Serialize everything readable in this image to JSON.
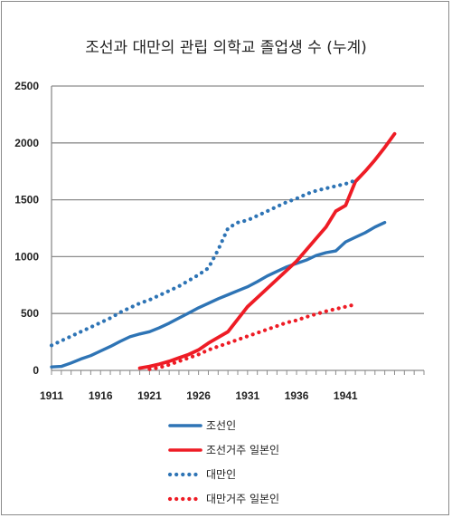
{
  "chart_data": {
    "type": "line",
    "title": "조선과 대만의 관립 의학교 졸업생 수 (누계)",
    "xlim": [
      1911,
      1949
    ],
    "ylim": [
      0,
      2500
    ],
    "x_ticks": [
      1911,
      1916,
      1921,
      1926,
      1931,
      1936,
      1941
    ],
    "y_ticks": [
      0,
      500,
      1000,
      1500,
      2000,
      2500
    ],
    "grid": "horizontal",
    "legend_position": "bottom",
    "series": [
      {
        "name": "조선인",
        "color": "#2e74b5",
        "style": "solid",
        "points": [
          [
            1911,
            30
          ],
          [
            1912,
            35
          ],
          [
            1913,
            65
          ],
          [
            1914,
            100
          ],
          [
            1915,
            130
          ],
          [
            1916,
            170
          ],
          [
            1917,
            210
          ],
          [
            1918,
            255
          ],
          [
            1919,
            295
          ],
          [
            1920,
            320
          ],
          [
            1921,
            340
          ],
          [
            1922,
            375
          ],
          [
            1923,
            415
          ],
          [
            1924,
            460
          ],
          [
            1925,
            505
          ],
          [
            1926,
            550
          ],
          [
            1927,
            590
          ],
          [
            1928,
            630
          ],
          [
            1929,
            665
          ],
          [
            1930,
            700
          ],
          [
            1931,
            735
          ],
          [
            1932,
            780
          ],
          [
            1933,
            830
          ],
          [
            1934,
            870
          ],
          [
            1935,
            910
          ],
          [
            1936,
            940
          ],
          [
            1937,
            970
          ],
          [
            1938,
            1010
          ],
          [
            1939,
            1035
          ],
          [
            1940,
            1050
          ],
          [
            1941,
            1130
          ],
          [
            1942,
            1170
          ],
          [
            1943,
            1210
          ],
          [
            1944,
            1260
          ],
          [
            1945,
            1300
          ]
        ]
      },
      {
        "name": "조선거주 일본인",
        "color": "#ee1c25",
        "style": "solid",
        "points": [
          [
            1920,
            20
          ],
          [
            1921,
            35
          ],
          [
            1922,
            55
          ],
          [
            1923,
            80
          ],
          [
            1924,
            110
          ],
          [
            1925,
            140
          ],
          [
            1926,
            180
          ],
          [
            1927,
            240
          ],
          [
            1928,
            290
          ],
          [
            1929,
            340
          ],
          [
            1930,
            450
          ],
          [
            1931,
            560
          ],
          [
            1932,
            640
          ],
          [
            1933,
            720
          ],
          [
            1934,
            800
          ],
          [
            1935,
            880
          ],
          [
            1936,
            960
          ],
          [
            1937,
            1060
          ],
          [
            1938,
            1160
          ],
          [
            1939,
            1260
          ],
          [
            1940,
            1400
          ],
          [
            1941,
            1450
          ],
          [
            1942,
            1660
          ],
          [
            1943,
            1750
          ],
          [
            1944,
            1850
          ],
          [
            1945,
            1960
          ],
          [
            1946,
            2080
          ]
        ]
      },
      {
        "name": "대만인",
        "color": "#2e74b5",
        "style": "dotted",
        "points": [
          [
            1911,
            220
          ],
          [
            1912,
            260
          ],
          [
            1913,
            300
          ],
          [
            1914,
            340
          ],
          [
            1915,
            380
          ],
          [
            1916,
            420
          ],
          [
            1917,
            460
          ],
          [
            1918,
            510
          ],
          [
            1919,
            550
          ],
          [
            1920,
            590
          ],
          [
            1921,
            620
          ],
          [
            1922,
            660
          ],
          [
            1923,
            700
          ],
          [
            1924,
            740
          ],
          [
            1925,
            790
          ],
          [
            1926,
            840
          ],
          [
            1927,
            900
          ],
          [
            1928,
            1060
          ],
          [
            1929,
            1250
          ],
          [
            1930,
            1300
          ],
          [
            1931,
            1320
          ],
          [
            1932,
            1360
          ],
          [
            1933,
            1400
          ],
          [
            1934,
            1440
          ],
          [
            1935,
            1480
          ],
          [
            1936,
            1510
          ],
          [
            1937,
            1550
          ],
          [
            1938,
            1580
          ],
          [
            1939,
            1600
          ],
          [
            1940,
            1620
          ],
          [
            1941,
            1640
          ],
          [
            1942,
            1670
          ]
        ]
      },
      {
        "name": "대만거주 일본인",
        "color": "#ee1c25",
        "style": "dotted",
        "points": [
          [
            1921,
            10
          ],
          [
            1922,
            25
          ],
          [
            1923,
            50
          ],
          [
            1924,
            80
          ],
          [
            1925,
            110
          ],
          [
            1926,
            140
          ],
          [
            1927,
            180
          ],
          [
            1928,
            210
          ],
          [
            1929,
            240
          ],
          [
            1930,
            270
          ],
          [
            1931,
            300
          ],
          [
            1932,
            330
          ],
          [
            1933,
            360
          ],
          [
            1934,
            390
          ],
          [
            1935,
            420
          ],
          [
            1936,
            440
          ],
          [
            1937,
            470
          ],
          [
            1938,
            495
          ],
          [
            1939,
            520
          ],
          [
            1940,
            540
          ],
          [
            1941,
            560
          ],
          [
            1942,
            580
          ]
        ]
      }
    ]
  }
}
